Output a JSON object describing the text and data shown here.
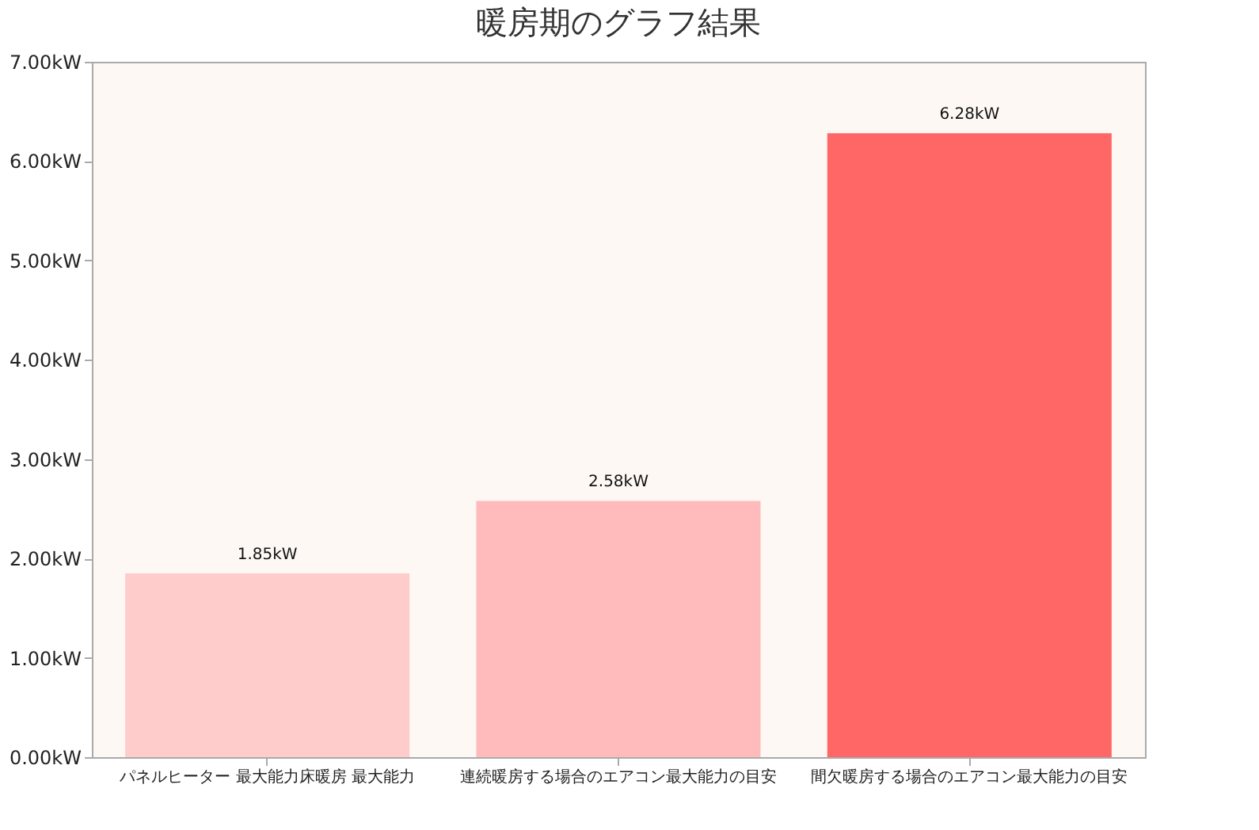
{
  "chart_data": {
    "type": "bar",
    "title": "暖房期のグラフ結果",
    "categories": [
      "パネルヒーター 最大能力床暖房 最大能力",
      "連続暖房する場合のエアコン最大能力の目安",
      "間欠暖房する場合のエアコン最大能力の目安"
    ],
    "values": [
      1.85,
      2.58,
      6.28
    ],
    "colors": [
      "#ffcccc",
      "#ffbbbb",
      "#ff6666"
    ],
    "value_labels": [
      "1.85kW",
      "2.58kW",
      "6.28kW"
    ],
    "ylim": [
      0,
      7
    ],
    "yticks": [
      {
        "value": 0,
        "label": "0.00kW"
      },
      {
        "value": 1,
        "label": "1.00kW"
      },
      {
        "value": 2,
        "label": "2.00kW"
      },
      {
        "value": 3,
        "label": "3.00kW"
      },
      {
        "value": 4,
        "label": "4.00kW"
      },
      {
        "value": 5,
        "label": "5.00kW"
      },
      {
        "value": 6,
        "label": "6.00kW"
      },
      {
        "value": 7,
        "label": "7.00kW"
      }
    ],
    "grid": false,
    "legend": false
  }
}
